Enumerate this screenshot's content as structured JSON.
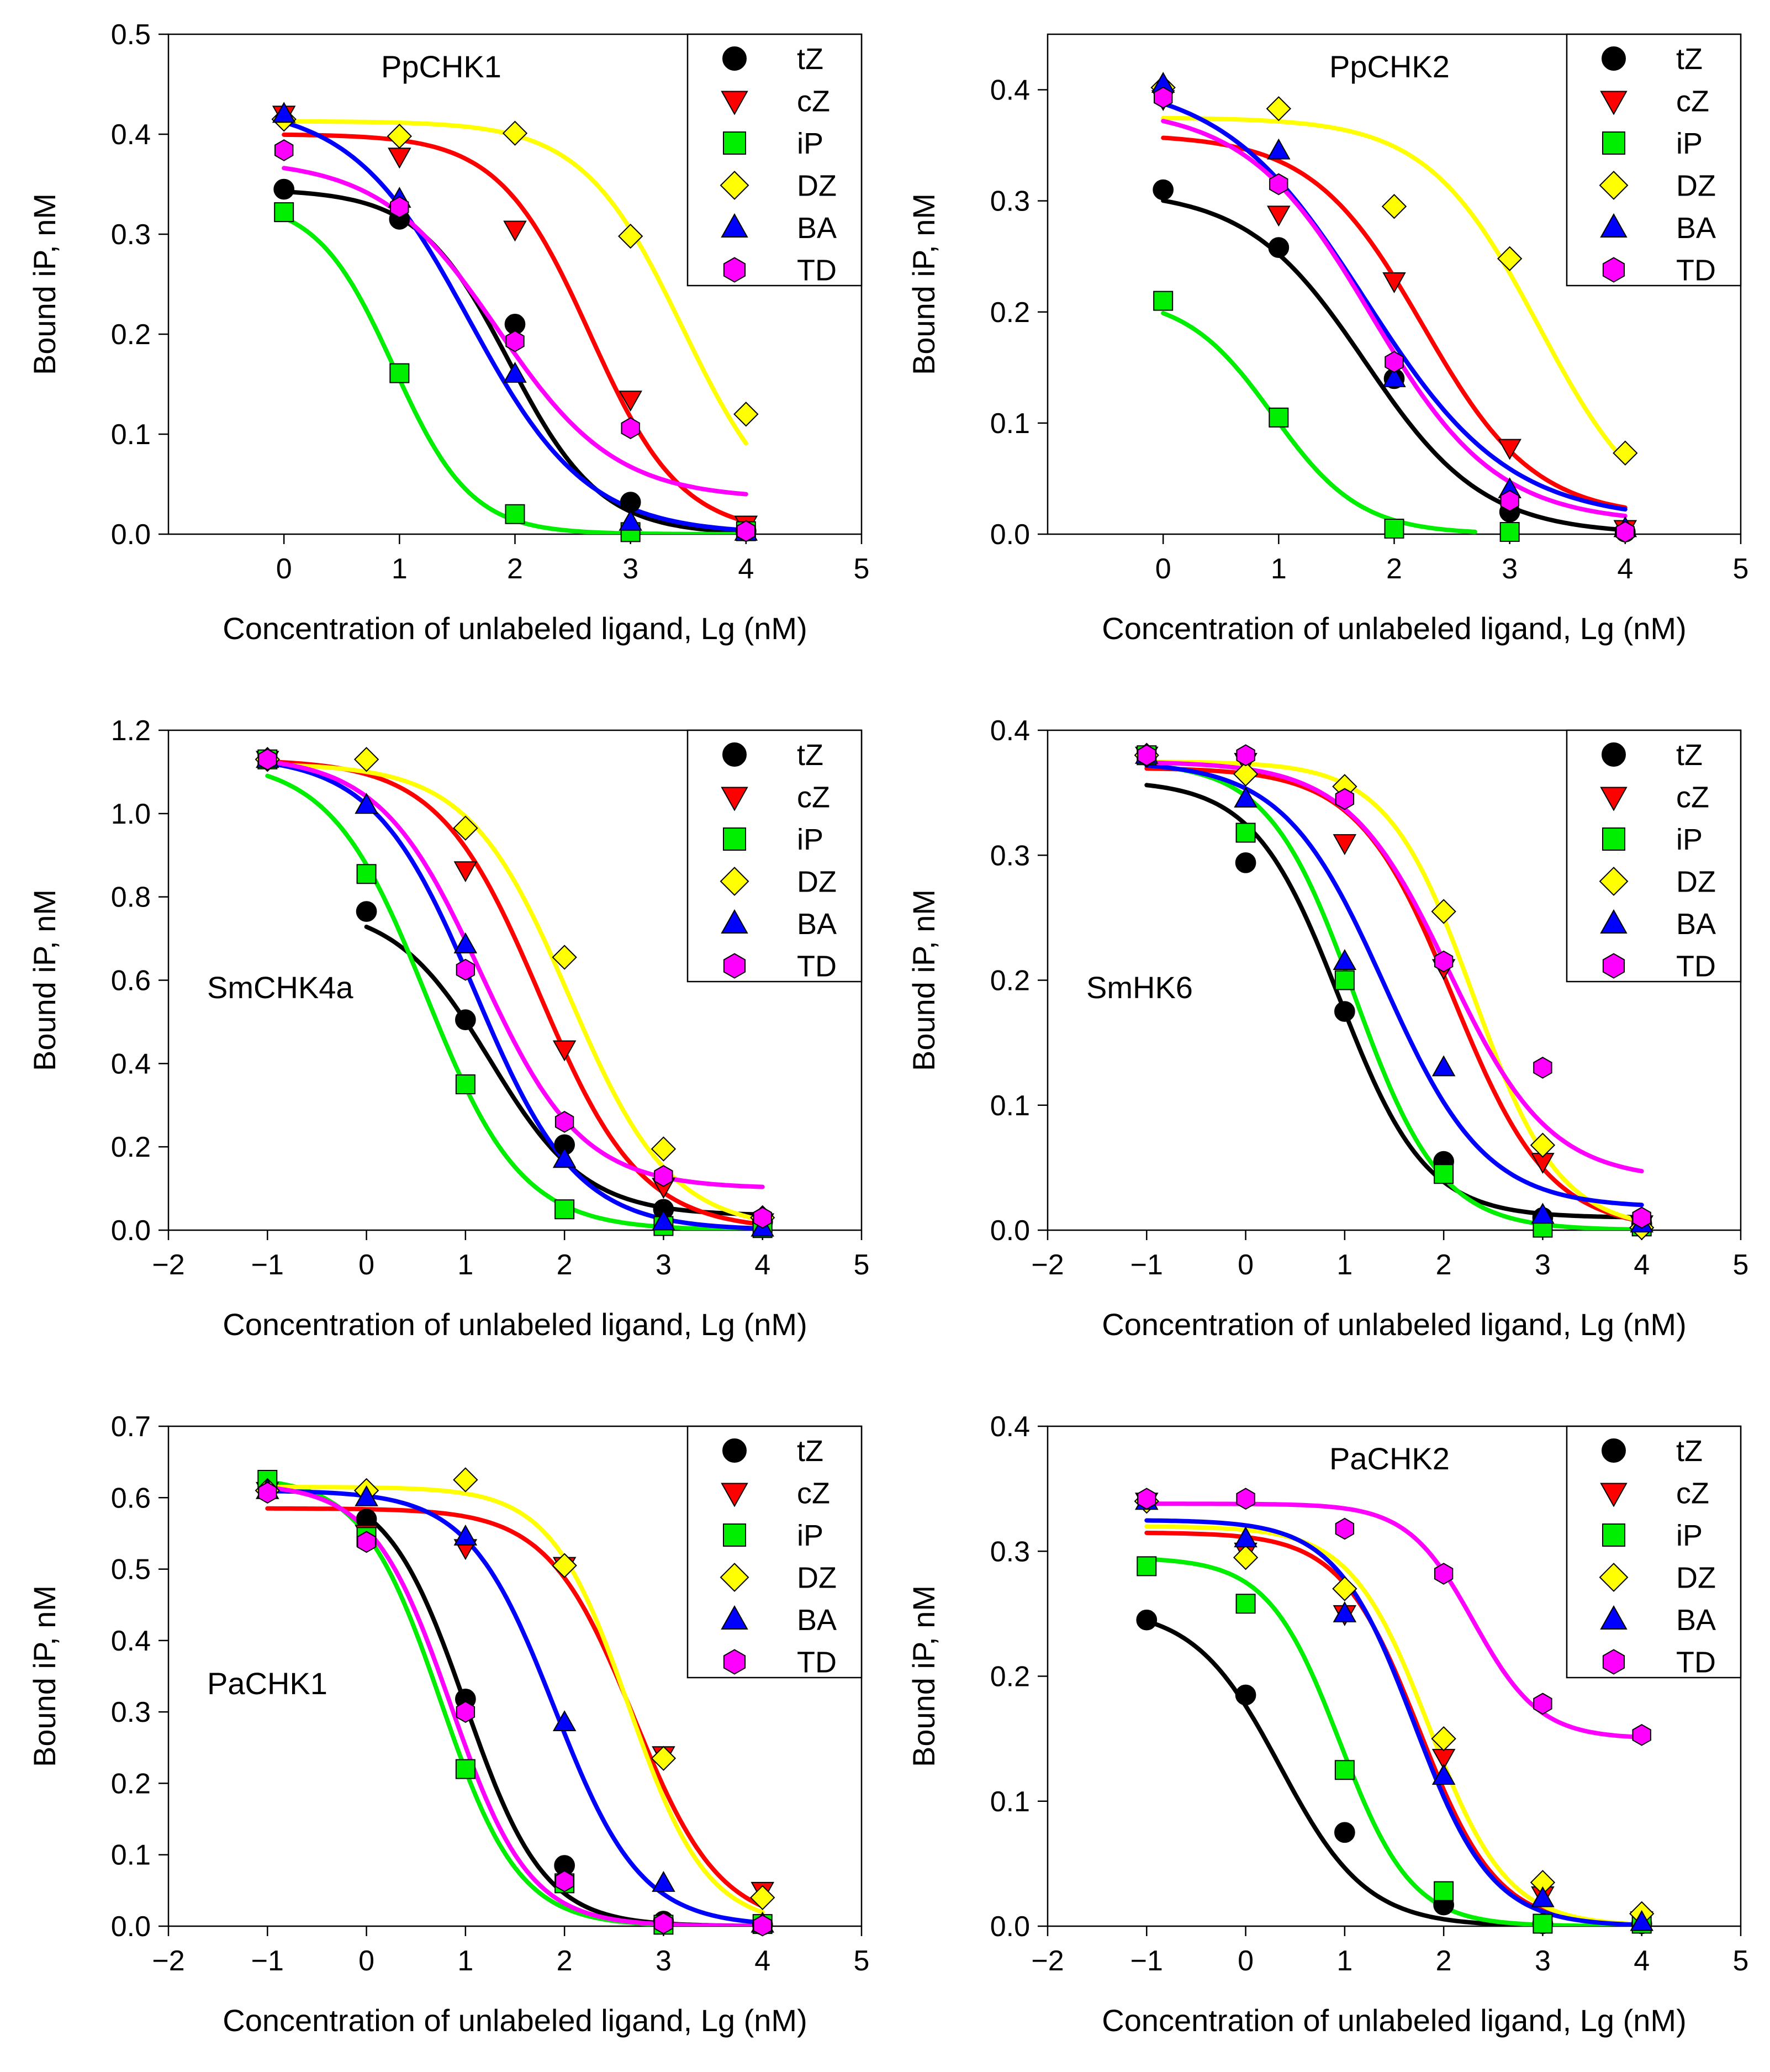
{
  "figure": {
    "ylabel": "Bound iP, nM",
    "xlabel": "Concentration of unlabeled ligand, Lg (nM)"
  },
  "series_style": [
    {
      "name": "tZ",
      "color": "#000000",
      "marker": "circle"
    },
    {
      "name": "cZ",
      "color": "#ff0000",
      "marker": "triangle-down"
    },
    {
      "name": "iP",
      "color": "#00ee00",
      "marker": "square"
    },
    {
      "name": "DZ",
      "color": "#ffff00",
      "marker": "diamond"
    },
    {
      "name": "BA",
      "color": "#0000ff",
      "marker": "triangle-up"
    },
    {
      "name": "TD",
      "color": "#ff00ff",
      "marker": "hexagon"
    }
  ],
  "chart_data": [
    {
      "type": "scatter",
      "title": "PpCHK1",
      "title_position": "top-left",
      "xlabel": "Concentration of unlabeled ligand, Lg (nM)",
      "ylabel": "Bound iP, nM",
      "xlim": [
        -1,
        5
      ],
      "ylim": [
        0,
        0.5
      ],
      "xticks": [
        0,
        1,
        2,
        3,
        4,
        5
      ],
      "xtick_labels": [
        "0",
        "1",
        "2",
        "3",
        "4",
        "5"
      ],
      "yticks": [
        0,
        0.1,
        0.2,
        0.3,
        0.4,
        0.5
      ],
      "ytick_labels": [
        "0.0",
        "0.1",
        "0.2",
        "0.3",
        "0.4",
        "0.5"
      ],
      "legend": "top-right",
      "series": [
        {
          "name": "tZ",
          "x": [
            0,
            1,
            2,
            3,
            4
          ],
          "y": [
            0.345,
            0.315,
            0.21,
            0.032,
            0.003
          ],
          "fit": [
            0.0,
            0.345,
            1.95,
            1.1
          ]
        },
        {
          "name": "cZ",
          "x": [
            0,
            1,
            2,
            3,
            4
          ],
          "y": [
            0.42,
            0.378,
            0.305,
            0.135,
            0.01
          ],
          "fit": [
            0.0,
            0.4,
            2.65,
            1.1
          ]
        },
        {
          "name": "iP",
          "x": [
            0,
            1,
            2,
            3,
            4
          ],
          "y": [
            0.322,
            0.161,
            0.02,
            0.002,
            0.003
          ],
          "fit": [
            0.0,
            0.335,
            0.95,
            1.3
          ]
        },
        {
          "name": "DZ",
          "x": [
            0,
            1,
            2,
            3,
            4
          ],
          "y": [
            0.415,
            0.398,
            0.401,
            0.298,
            0.12
          ],
          "fit": [
            0.0,
            0.413,
            3.45,
            1.0
          ]
        },
        {
          "name": "BA",
          "x": [
            0,
            1,
            2,
            3,
            4
          ],
          "y": [
            0.42,
            0.335,
            0.16,
            0.012,
            0.002
          ],
          "fit": [
            0.0,
            0.43,
            1.6,
            0.85
          ]
        },
        {
          "name": "TD",
          "x": [
            0,
            1,
            2,
            3,
            4
          ],
          "y": [
            0.384,
            0.327,
            0.193,
            0.106,
            0.003
          ],
          "fit": [
            0.035,
            0.375,
            1.85,
            0.85
          ]
        }
      ]
    },
    {
      "type": "scatter",
      "title": "PpCHK2",
      "title_position": "top-center",
      "xlabel": "Concentration of unlabeled ligand, Lg (nM)",
      "ylabel": "Bound iP, nM",
      "xlim": [
        -1,
        5
      ],
      "ylim": [
        0,
        0.45
      ],
      "xticks": [
        0,
        1,
        2,
        3,
        4,
        5
      ],
      "xtick_labels": [
        "0",
        "1",
        "2",
        "3",
        "4",
        "5"
      ],
      "yticks": [
        0,
        0.1,
        0.2,
        0.3,
        0.4
      ],
      "ytick_labels": [
        "0.0",
        "0.1",
        "0.2",
        "0.3",
        "0.4"
      ],
      "legend": "top-right",
      "series": [
        {
          "name": "tZ",
          "x": [
            0,
            1,
            2,
            3,
            4
          ],
          "y": [
            0.31,
            0.258,
            0.14,
            0.02,
            0.002
          ],
          "fit": [
            0.0,
            0.31,
            1.75,
            0.85
          ]
        },
        {
          "name": "cZ",
          "x": [
            0,
            1,
            2,
            3,
            4
          ],
          "y": [
            0.392,
            0.288,
            0.228,
            0.078,
            0.005
          ],
          "fit": [
            0.015,
            0.36,
            2.25,
            0.9
          ]
        },
        {
          "name": "iP",
          "x": [
            0,
            1,
            2,
            3
          ],
          "y": [
            0.21,
            0.105,
            0.005,
            0.002
          ],
          "fit": [
            0.0,
            0.215,
            0.95,
            1.15
          ],
          "fit_range": [
            0,
            2.7
          ]
        },
        {
          "name": "DZ",
          "x": [
            0,
            1,
            2,
            3,
            4
          ],
          "y": [
            0.402,
            0.383,
            0.295,
            0.248,
            0.073
          ],
          "fit": [
            0.0,
            0.375,
            3.25,
            0.9
          ]
        },
        {
          "name": "BA",
          "x": [
            0,
            1,
            2,
            3,
            4
          ],
          "y": [
            0.405,
            0.345,
            0.14,
            0.04,
            0.005
          ],
          "fit": [
            0.012,
            0.41,
            1.75,
            0.7
          ]
        },
        {
          "name": "TD",
          "x": [
            0,
            1,
            2,
            3,
            4
          ],
          "y": [
            0.393,
            0.315,
            0.155,
            0.03,
            0.002
          ],
          "fit": [
            0.01,
            0.385,
            1.8,
            0.8
          ]
        }
      ]
    },
    {
      "type": "scatter",
      "title": "SmCHK4a",
      "title_position": "middle-left",
      "xlabel": "Concentration of unlabeled ligand, Lg (nM)",
      "ylabel": "Bound iP, nM",
      "xlim": [
        -2,
        5
      ],
      "ylim": [
        0,
        1.2
      ],
      "xticks": [
        -2,
        -1,
        0,
        1,
        2,
        3,
        4,
        5
      ],
      "xtick_labels": [
        "−2",
        "−1",
        "0",
        "1",
        "2",
        "3",
        "4",
        "5"
      ],
      "yticks": [
        0,
        0.2,
        0.4,
        0.6,
        0.8,
        1.0,
        1.2
      ],
      "ytick_labels": [
        "0.0",
        "0.2",
        "0.4",
        "0.6",
        "0.8",
        "1.0",
        "1.2"
      ],
      "legend": "top-right",
      "series": [
        {
          "name": "tZ",
          "x": [
            0,
            1,
            2,
            3,
            4
          ],
          "y": [
            0.765,
            0.505,
            0.205,
            0.05,
            0.02
          ],
          "fit": [
            0.035,
            0.78,
            1.25,
            0.9
          ],
          "fit_range": [
            0,
            4
          ]
        },
        {
          "name": "cZ",
          "x": [
            -1,
            1,
            2,
            3,
            4
          ],
          "y": [
            1.13,
            0.865,
            0.435,
            0.105,
            0.02
          ],
          "fit": [
            0.0,
            1.13,
            1.75,
            0.85
          ]
        },
        {
          "name": "iP",
          "x": [
            -1,
            0,
            1,
            2,
            3,
            4
          ],
          "y": [
            1.13,
            0.855,
            0.35,
            0.05,
            0.01,
            0.005
          ],
          "fit": [
            0.0,
            1.13,
            0.6,
            0.9
          ]
        },
        {
          "name": "DZ",
          "x": [
            -1,
            0,
            1,
            2,
            3,
            4
          ],
          "y": [
            1.13,
            1.13,
            0.965,
            0.655,
            0.195,
            0.03
          ],
          "fit": [
            0.0,
            1.12,
            2.05,
            0.85
          ]
        },
        {
          "name": "BA",
          "x": [
            -1,
            0,
            1,
            2,
            3,
            4
          ],
          "y": [
            1.13,
            1.02,
            0.685,
            0.17,
            0.02,
            0.005
          ],
          "fit": [
            0.0,
            1.14,
            1.1,
            0.85
          ]
        },
        {
          "name": "TD",
          "x": [
            -1,
            1,
            2,
            3,
            4
          ],
          "y": [
            1.13,
            0.625,
            0.26,
            0.13,
            0.03
          ],
          "fit": [
            0.1,
            1.14,
            1.15,
            0.85
          ]
        }
      ]
    },
    {
      "type": "scatter",
      "title": "SmHK6",
      "title_position": "middle-left",
      "xlabel": "Concentration of unlabeled ligand, Lg (nM)",
      "ylabel": "Bound iP, nM",
      "xlim": [
        -2,
        5
      ],
      "ylim": [
        0,
        0.4
      ],
      "xticks": [
        -2,
        -1,
        0,
        1,
        2,
        3,
        4,
        5
      ],
      "xtick_labels": [
        "−2",
        "−1",
        "0",
        "1",
        "2",
        "3",
        "4",
        "5"
      ],
      "yticks": [
        0,
        0.1,
        0.2,
        0.3,
        0.4
      ],
      "ytick_labels": [
        "0.0",
        "0.1",
        "0.2",
        "0.3",
        "0.4"
      ],
      "legend": "top-right",
      "series": [
        {
          "name": "tZ",
          "x": [
            -1,
            0,
            1,
            2,
            3,
            4
          ],
          "y": [
            0.38,
            0.294,
            0.175,
            0.055,
            0.01,
            0.005
          ],
          "fit": [
            0.01,
            0.36,
            0.95,
            1.0
          ]
        },
        {
          "name": "cZ",
          "x": [
            -1,
            0,
            1,
            2,
            3,
            4
          ],
          "y": [
            0.38,
            0.375,
            0.31,
            0.21,
            0.055,
            0.005
          ],
          "fit": [
            0.0,
            0.37,
            2.1,
            0.9
          ]
        },
        {
          "name": "iP",
          "x": [
            -1,
            0,
            1,
            2,
            3,
            4
          ],
          "y": [
            0.38,
            0.318,
            0.2,
            0.045,
            0.002,
            0.003
          ],
          "fit": [
            0.0,
            0.375,
            1.1,
            1.0
          ]
        },
        {
          "name": "DZ",
          "x": [
            -1,
            0,
            1,
            2,
            3,
            4
          ],
          "y": [
            0.38,
            0.365,
            0.355,
            0.255,
            0.068,
            0.002
          ],
          "fit": [
            0.0,
            0.375,
            2.3,
            1.0
          ]
        },
        {
          "name": "BA",
          "x": [
            -1,
            0,
            1,
            2,
            3,
            4
          ],
          "y": [
            0.38,
            0.345,
            0.215,
            0.13,
            0.012,
            0.005
          ],
          "fit": [
            0.018,
            0.375,
            1.4,
            0.85
          ]
        },
        {
          "name": "TD",
          "x": [
            -1,
            0,
            1,
            2,
            3,
            4
          ],
          "y": [
            0.38,
            0.38,
            0.345,
            0.215,
            0.13,
            0.01
          ],
          "fit": [
            0.04,
            0.375,
            2.05,
            0.85
          ]
        }
      ]
    },
    {
      "type": "scatter",
      "title": "PaCHK1",
      "title_position": "middle-left",
      "xlabel": "Concentration of unlabeled ligand, Lg (nM)",
      "ylabel": "Bound iP, nM",
      "xlim": [
        -2,
        5
      ],
      "ylim": [
        0,
        0.7
      ],
      "xticks": [
        -2,
        -1,
        0,
        1,
        2,
        3,
        4,
        5
      ],
      "xtick_labels": [
        "−2",
        "−1",
        "0",
        "1",
        "2",
        "3",
        "4",
        "5"
      ],
      "yticks": [
        0,
        0.1,
        0.2,
        0.3,
        0.4,
        0.5,
        0.6,
        0.7
      ],
      "ytick_labels": [
        "0.0",
        "0.1",
        "0.2",
        "0.3",
        "0.4",
        "0.5",
        "0.6",
        "0.7"
      ],
      "legend": "top-right",
      "series": [
        {
          "name": "tZ",
          "x": [
            0,
            1,
            2,
            3,
            4
          ],
          "y": [
            0.57,
            0.318,
            0.085,
            0.007,
            0.002
          ],
          "fit": [
            0.0,
            0.62,
            1.0,
            1.1
          ],
          "fit_range": [
            0,
            4
          ]
        },
        {
          "name": "cZ",
          "x": [
            -1,
            0,
            1,
            2,
            3,
            4
          ],
          "y": [
            0.61,
            0.55,
            0.53,
            0.505,
            0.24,
            0.05
          ],
          "fit": [
            0.0,
            0.585,
            2.7,
            1.0
          ]
        },
        {
          "name": "iP",
          "x": [
            -1,
            0,
            1,
            2,
            3,
            4
          ],
          "y": [
            0.625,
            0.545,
            0.22,
            0.06,
            0.002,
            0.003
          ],
          "fit": [
            0.0,
            0.63,
            0.75,
            1.1
          ]
        },
        {
          "name": "DZ",
          "x": [
            -1,
            0,
            1,
            2,
            3,
            4
          ],
          "y": [
            0.61,
            0.61,
            0.625,
            0.505,
            0.235,
            0.04
          ],
          "fit": [
            0.0,
            0.615,
            2.65,
            1.1
          ]
        },
        {
          "name": "BA",
          "x": [
            -1,
            0,
            1,
            2,
            3,
            4
          ],
          "y": [
            0.61,
            0.6,
            0.545,
            0.285,
            0.06,
            0.003
          ],
          "fit": [
            0.0,
            0.61,
            1.9,
            1.0
          ]
        },
        {
          "name": "TD",
          "x": [
            -1,
            0,
            1,
            2,
            3,
            4
          ],
          "y": [
            0.607,
            0.538,
            0.3,
            0.063,
            0.004,
            0.001
          ],
          "fit": [
            0.0,
            0.62,
            0.85,
            1.1
          ]
        }
      ]
    },
    {
      "type": "scatter",
      "title": "PaCHK2",
      "title_position": "top-center",
      "xlabel": "Concentration of unlabeled ligand, Lg (nM)",
      "ylabel": "Bound iP, nM",
      "xlim": [
        -2,
        5
      ],
      "ylim": [
        0,
        0.4
      ],
      "xticks": [
        -2,
        -1,
        0,
        1,
        2,
        3,
        4,
        5
      ],
      "xtick_labels": [
        "−2",
        "−1",
        "0",
        "1",
        "2",
        "3",
        "4",
        "5"
      ],
      "yticks": [
        0,
        0.1,
        0.2,
        0.3,
        0.4
      ],
      "ytick_labels": [
        "0.0",
        "0.1",
        "0.2",
        "0.3",
        "0.4"
      ],
      "legend": "top-right",
      "series": [
        {
          "name": "tZ",
          "x": [
            -1,
            0,
            1,
            2,
            3,
            4
          ],
          "y": [
            0.245,
            0.185,
            0.075,
            0.017,
            0.002,
            0.002
          ],
          "fit": [
            0.0,
            0.255,
            0.35,
            1.0
          ]
        },
        {
          "name": "cZ",
          "x": [
            -1,
            0,
            1,
            2,
            3,
            4
          ],
          "y": [
            0.34,
            0.3,
            0.25,
            0.135,
            0.025,
            0.005
          ],
          "fit": [
            0.0,
            0.315,
            1.75,
            1.1
          ]
        },
        {
          "name": "iP",
          "x": [
            -1,
            0,
            1,
            2,
            3,
            4
          ],
          "y": [
            0.288,
            0.258,
            0.125,
            0.028,
            0.002,
            0.002
          ],
          "fit": [
            0.0,
            0.295,
            0.95,
            1.2
          ]
        },
        {
          "name": "DZ",
          "x": [
            -1,
            0,
            1,
            2,
            3,
            4
          ],
          "y": [
            0.34,
            0.295,
            0.27,
            0.15,
            0.035,
            0.01
          ],
          "fit": [
            0.0,
            0.32,
            1.85,
            1.1
          ]
        },
        {
          "name": "BA",
          "x": [
            -1,
            0,
            1,
            2,
            3,
            4
          ],
          "y": [
            0.34,
            0.31,
            0.25,
            0.12,
            0.022,
            0.003
          ],
          "fit": [
            0.0,
            0.325,
            1.7,
            1.1
          ]
        },
        {
          "name": "TD",
          "x": [
            -1,
            0,
            1,
            2,
            3,
            4
          ],
          "y": [
            0.342,
            0.342,
            0.318,
            0.282,
            0.178,
            0.153
          ],
          "fit": [
            0.15,
            0.338,
            2.3,
            1.3
          ]
        }
      ]
    }
  ]
}
